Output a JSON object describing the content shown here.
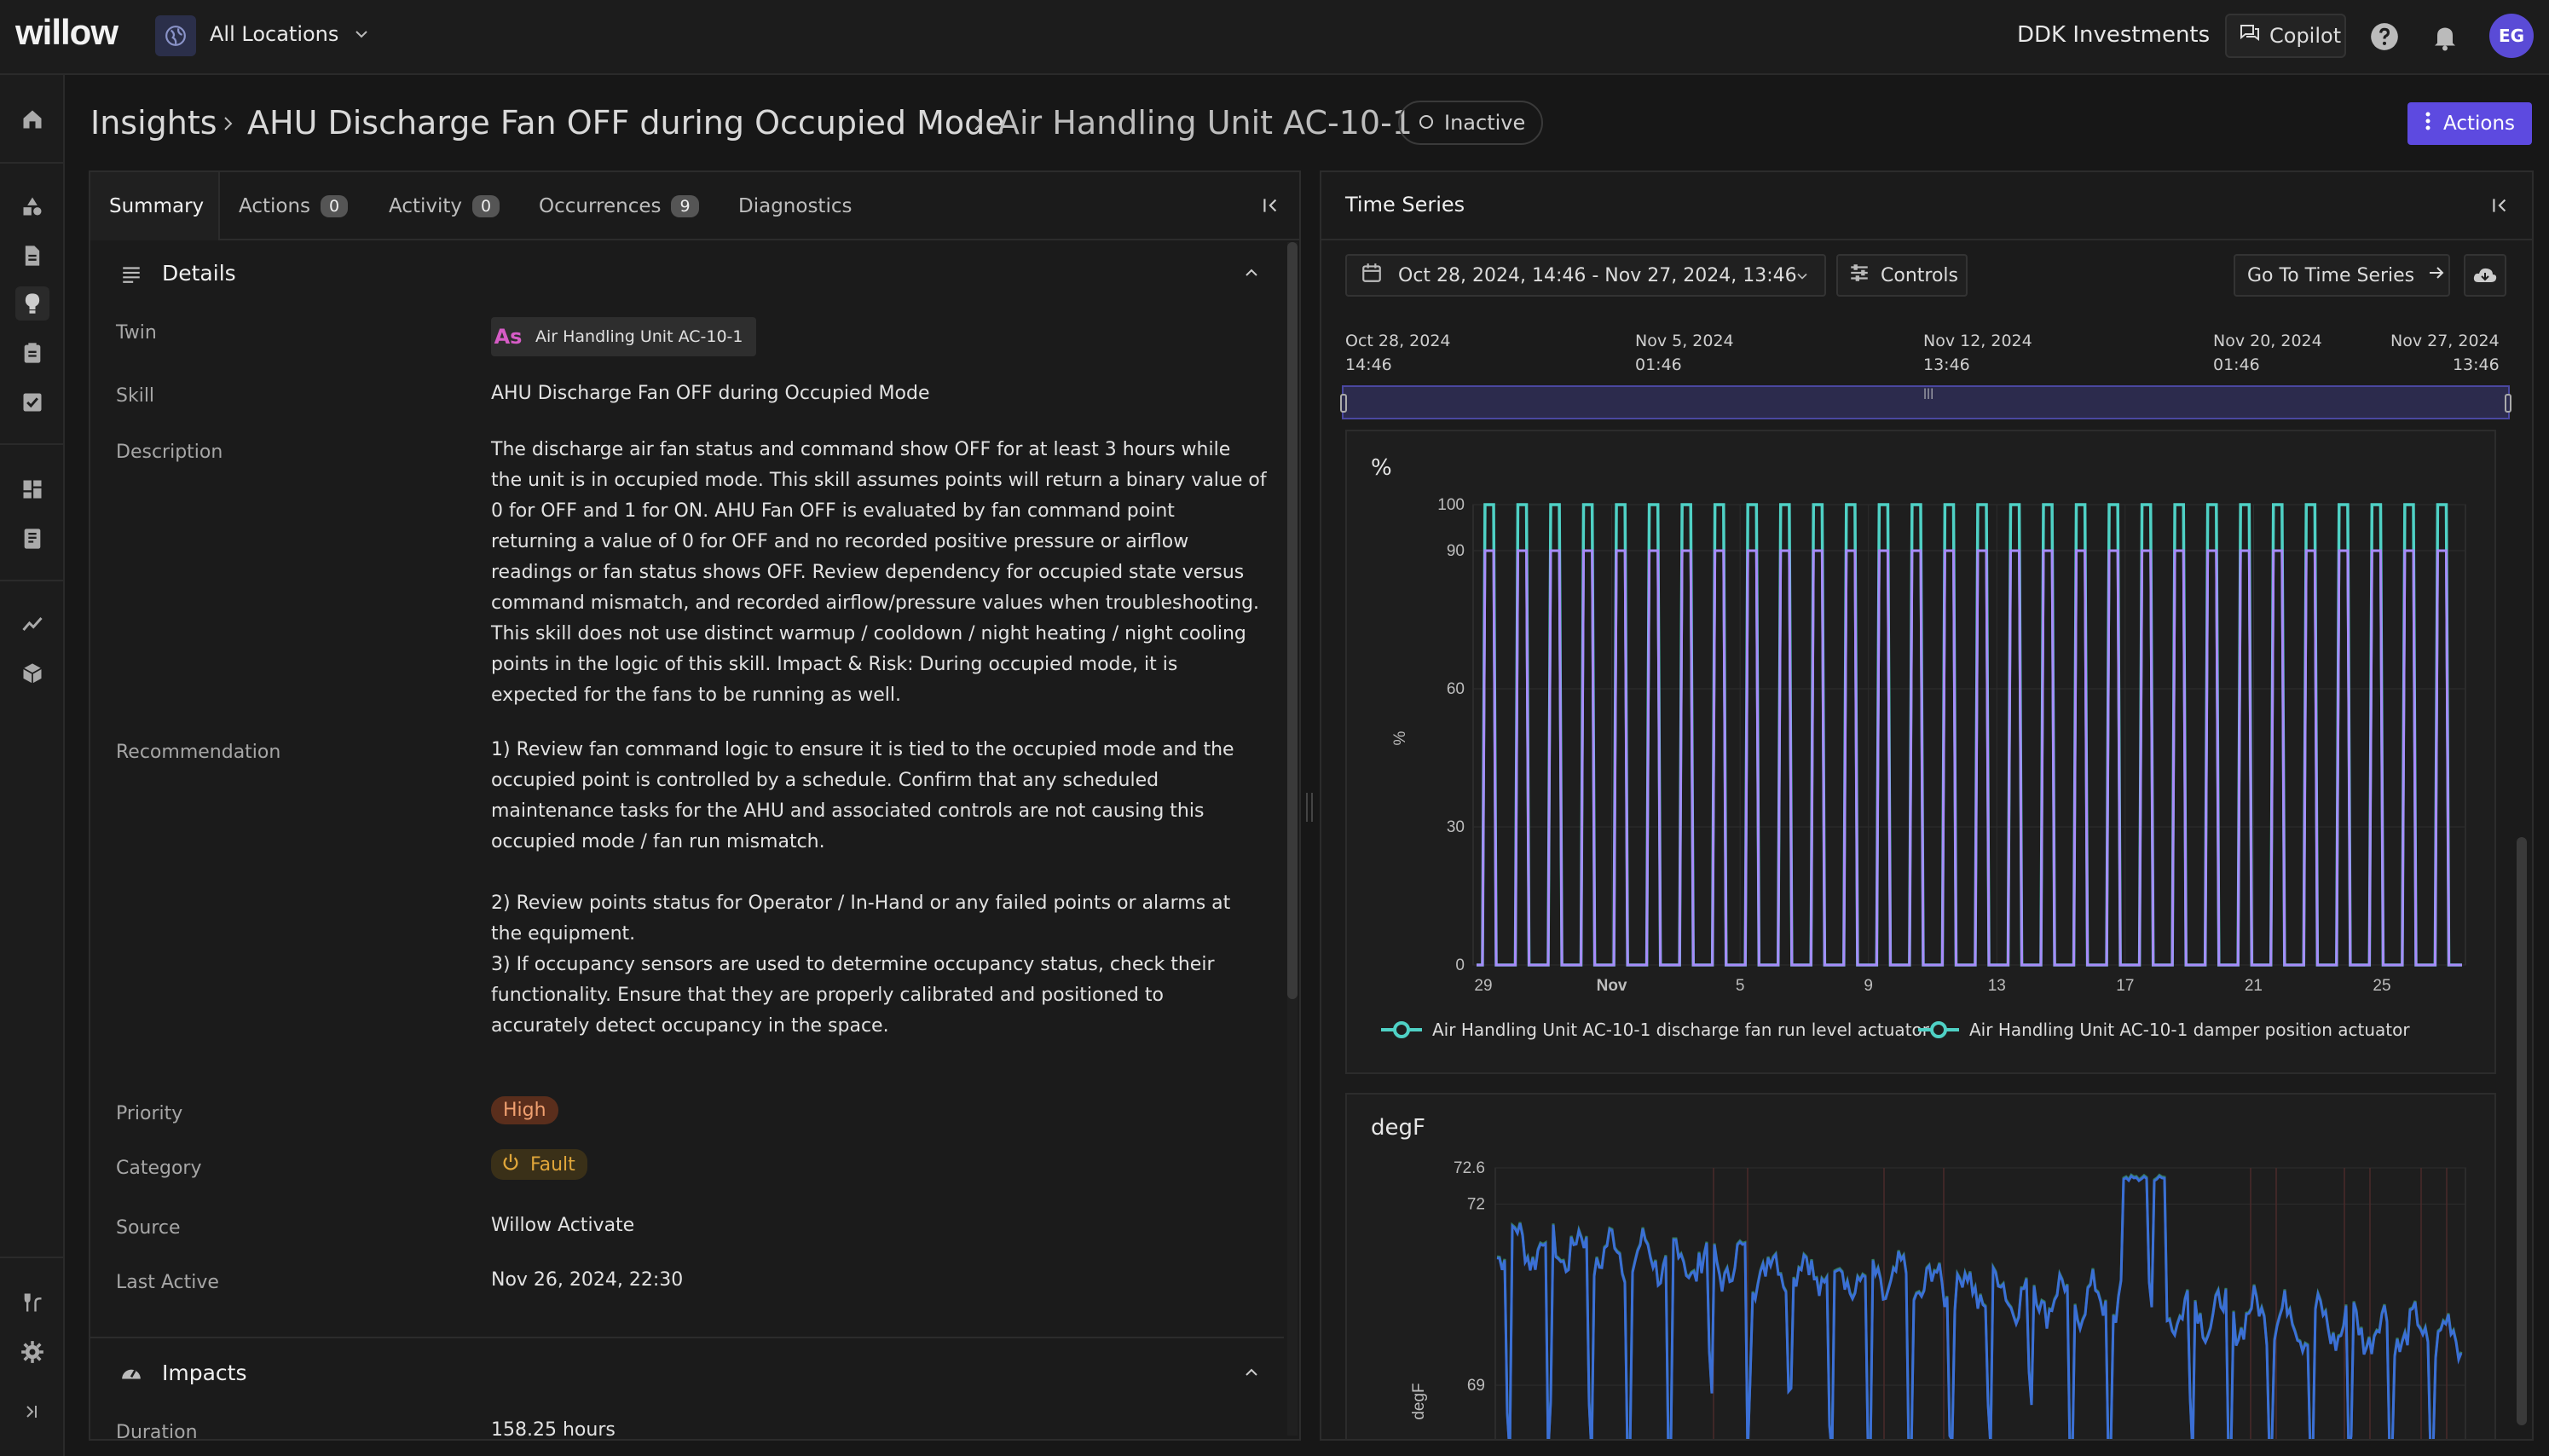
{
  "app": {
    "logo": "willow",
    "location": "All Locations",
    "company": "DDK Investments",
    "copilot": "Copilot",
    "user_initials": "EG"
  },
  "breadcrumb": {
    "root": "Insights",
    "insight": "AHU Discharge Fan OFF during Occupied Mode",
    "twin": "Air Handling Unit AC-10-1"
  },
  "status": "Inactive",
  "actions_label": "Actions",
  "tabs": [
    {
      "label": "Summary"
    },
    {
      "label": "Actions",
      "count": "0"
    },
    {
      "label": "Activity",
      "count": "0"
    },
    {
      "label": "Occurrences",
      "count": "9"
    },
    {
      "label": "Diagnostics"
    }
  ],
  "details": {
    "title": "Details",
    "twin_label": "Twin",
    "twin_prefix": "As",
    "twin_value": "Air Handling Unit AC-10-1",
    "skill_label": "Skill",
    "skill_value": "AHU Discharge Fan OFF during Occupied Mode",
    "description_label": "Description",
    "description_value": "The discharge air fan status and command show OFF for at least 3 hours while the unit is in occupied mode. This skill assumes points will return a binary value of 0 for OFF and 1 for ON. AHU Fan OFF is evaluated by fan command point returning a value of 0 for OFF and no recorded positive pressure or airflow readings or fan status shows OFF. Review dependency for occupied state versus command mismatch, and recorded airflow/pressure values when troubleshooting. This skill does not use distinct warmup / cooldown / night heating / night cooling points in the logic of this skill. Impact & Risk: During occupied mode, it is expected for the fans to be running as well.",
    "recommendation_label": "Recommendation",
    "recommendation_1": "1) Review fan command logic to ensure it is tied to the occupied mode and the occupied point is controlled by a schedule. Confirm that any scheduled maintenance tasks for the AHU and associated controls are not causing this occupied mode / fan run mismatch.",
    "recommendation_2": "2) Review points status for Operator / In-Hand or any failed points or alarms at the equipment.",
    "recommendation_3": "3) If occupancy sensors are used to determine occupancy status, check their functionality. Ensure that they are properly calibrated and positioned to accurately detect occupancy in the space.",
    "priority_label": "Priority",
    "priority_value": "High",
    "category_label": "Category",
    "category_value": "Fault",
    "source_label": "Source",
    "source_value": "Willow Activate",
    "last_active_label": "Last Active",
    "last_active_value": "Nov 26, 2024, 22:30"
  },
  "impacts": {
    "title": "Impacts",
    "duration_label": "Duration",
    "duration_value": "158.25 hours"
  },
  "time_series": {
    "title": "Time Series",
    "range": "Oct 28, 2024, 14:46 - Nov 27, 2024, 13:46",
    "controls": "Controls",
    "goto": "Go To Time Series",
    "timeline": [
      {
        "date": "Oct 28, 2024",
        "time": "14:46"
      },
      {
        "date": "Nov 5, 2024",
        "time": "01:46"
      },
      {
        "date": "Nov 12, 2024",
        "time": "13:46"
      },
      {
        "date": "Nov 20, 2024",
        "time": "01:46"
      },
      {
        "date": "Nov 27, 2024",
        "time": "13:46"
      }
    ]
  },
  "chart_data": [
    {
      "type": "line",
      "unit": "%",
      "ylabel": "%",
      "yticks": [
        "100",
        "90",
        "60",
        "30",
        "0"
      ],
      "ylim": [
        0,
        100
      ],
      "xticks": [
        "29",
        "Nov",
        "5",
        "9",
        "13",
        "17",
        "21",
        "25"
      ],
      "series": [
        {
          "name": "Air Handling Unit AC-10-1 discharge fan run level actuator",
          "color": "#4fd1c5",
          "pattern": "daily square wave 0 to 100",
          "cycles": 30
        },
        {
          "name": "Air Handling Unit AC-10-1 damper position actuator",
          "color": "#a78bfa",
          "pattern": "daily square wave 0 to 90",
          "cycles": 30
        }
      ],
      "legend": "bottom"
    },
    {
      "type": "line",
      "unit": "degF",
      "ylabel": "degF",
      "yticks": [
        "72.6",
        "72",
        "69"
      ],
      "series_color": "#3b6fd6"
    }
  ]
}
